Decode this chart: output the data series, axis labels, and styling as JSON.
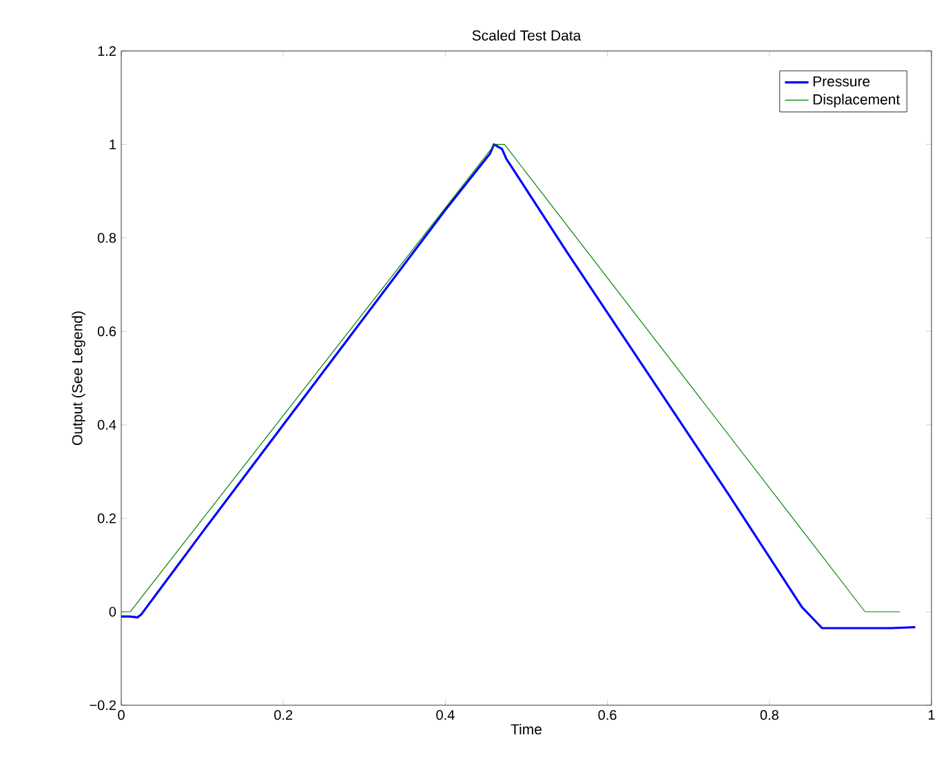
{
  "chart_data": {
    "type": "line",
    "title": "Scaled Test Data",
    "xlabel": "Time",
    "ylabel": "Output (See Legend)",
    "xlim": [
      0,
      1
    ],
    "ylim": [
      -0.2,
      1.2
    ],
    "xticks": [
      0,
      0.2,
      0.4,
      0.6,
      0.8,
      1
    ],
    "yticks": [
      {
        "value": -0.2,
        "label": "−0.2"
      },
      0,
      0.2,
      0.4,
      0.6,
      0.8,
      1,
      1.2
    ],
    "legend": "top right",
    "grid": false,
    "marker": "none",
    "line_style": "solid",
    "series": [
      {
        "name": "Pressure",
        "color": "#0000ff",
        "x": [
          0,
          0.01,
          0.02,
          0.025,
          0.1,
          0.2,
          0.3,
          0.4,
          0.455,
          0.46,
          0.47,
          0.475,
          0.55,
          0.65,
          0.75,
          0.84,
          0.865,
          0.9,
          0.95,
          0.98
        ],
        "values": [
          -0.01,
          -0.01,
          -0.012,
          -0.005,
          0.17,
          0.4,
          0.63,
          0.86,
          0.98,
          1.0,
          0.99,
          0.97,
          0.77,
          0.51,
          0.25,
          0.01,
          -0.035,
          -0.035,
          -0.035,
          -0.033
        ]
      },
      {
        "name": "Displacement",
        "color": "#008000",
        "x": [
          0,
          0.011,
          0.461,
          0.473,
          0.918,
          0.961
        ],
        "values": [
          0,
          0,
          1,
          1,
          0,
          0
        ]
      }
    ]
  }
}
